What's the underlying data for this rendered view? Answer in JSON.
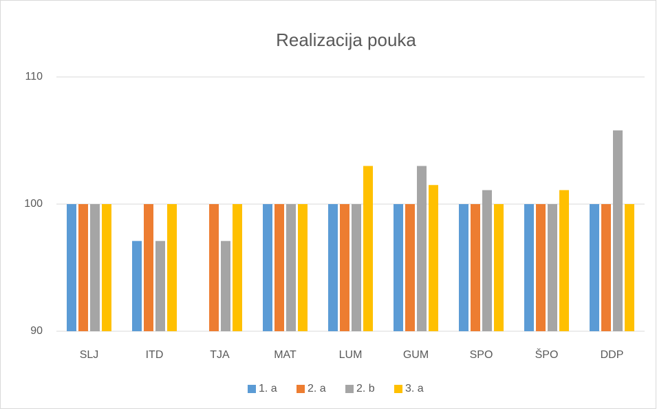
{
  "chart_data": {
    "type": "bar",
    "title": "Realizacija pouka",
    "categories": [
      "SLJ",
      "ITD",
      "TJA",
      "MAT",
      "LUM",
      "GUM",
      "SPO",
      "ŠPO",
      "DDP"
    ],
    "series": [
      {
        "name": "1. a",
        "color": "#5b9bd5",
        "values": [
          100,
          97.1,
          null,
          100,
          100,
          100,
          100,
          100,
          100
        ]
      },
      {
        "name": "2. a",
        "color": "#ed7d31",
        "values": [
          100,
          100,
          100,
          100,
          100,
          100,
          100,
          100,
          100
        ]
      },
      {
        "name": "2. b",
        "color": "#a5a5a5",
        "values": [
          100,
          97.1,
          97.1,
          100,
          100,
          103,
          101.1,
          100,
          105.8
        ]
      },
      {
        "name": "3. a",
        "color": "#ffc000",
        "values": [
          100,
          100,
          100,
          100,
          103,
          101.5,
          100,
          101.1,
          100
        ]
      }
    ],
    "ylim": [
      90,
      110
    ],
    "yticks": [
      90,
      100,
      110
    ],
    "grid": true,
    "legend": "bottom"
  }
}
